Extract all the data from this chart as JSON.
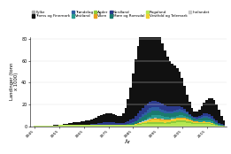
{
  "title": "",
  "xlabel": "År",
  "ylabel": "Landinger (tonn\nx 1000)",
  "legend_labels": [
    "Fylke",
    "Troms og Finnmark",
    "Trøndelag",
    "Vestland",
    "Agder",
    "Viken",
    "Nordland",
    "Møre og Romsdal",
    "Rogaland",
    "Vestfold og Telemark",
    "Innlandet"
  ],
  "legend_colors": [
    "#aaaaaa",
    "#111111",
    "#2e5fa3",
    "#2a9d8f",
    "#8ecb3b",
    "#e8a020",
    "#2b3a8c",
    "#1a7a6e",
    "#b5e853",
    "#f0d030",
    "#c8c8c8"
  ],
  "xmin": 1945,
  "xmax": 2022,
  "ymin": 0,
  "ymax": 80000,
  "background": "#ffffff"
}
